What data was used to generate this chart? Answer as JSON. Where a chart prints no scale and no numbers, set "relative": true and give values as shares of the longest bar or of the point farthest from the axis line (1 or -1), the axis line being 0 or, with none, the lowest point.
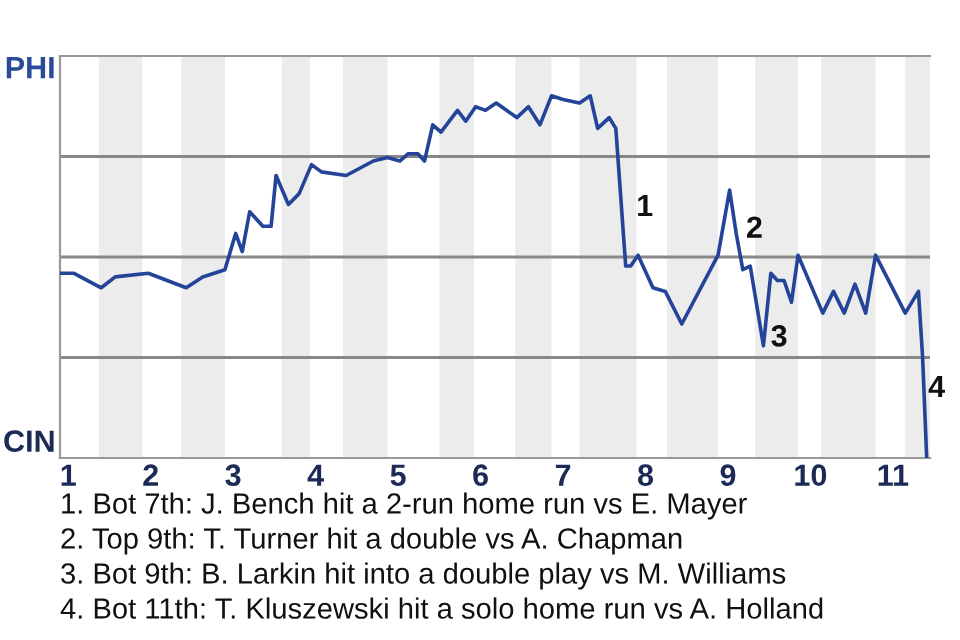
{
  "chart_data": {
    "type": "line",
    "relative": true,
    "x": [
      0.9,
      1.07,
      1.4,
      1.57,
      1.97,
      2.43,
      2.63,
      2.9,
      3.03,
      3.11,
      3.2,
      3.36,
      3.46,
      3.52,
      3.67,
      3.8,
      3.95,
      4.07,
      4.37,
      4.7,
      4.87,
      5.02,
      5.12,
      5.24,
      5.32,
      5.42,
      5.52,
      5.72,
      5.82,
      5.94,
      6.06,
      6.19,
      6.44,
      6.58,
      6.72,
      6.86,
      7.0,
      7.2,
      7.33,
      7.42,
      7.56,
      7.64,
      7.76,
      7.82,
      7.91,
      8.09,
      8.24,
      8.44,
      8.88,
      9.02,
      9.1,
      9.18,
      9.27,
      9.43,
      9.52,
      9.6,
      9.68,
      9.77,
      9.85,
      10.15,
      10.28,
      10.41,
      10.54,
      10.67,
      10.79,
      11.15,
      11.31,
      11.36,
      11.41
    ],
    "series": [
      {
        "color": "#24449a",
        "values": [
          0.51,
          0.51,
          0.47,
          0.5,
          0.51,
          0.47,
          0.5,
          0.52,
          0.62,
          0.57,
          0.68,
          0.64,
          0.64,
          0.78,
          0.7,
          0.73,
          0.81,
          0.79,
          0.78,
          0.82,
          0.83,
          0.82,
          0.84,
          0.84,
          0.82,
          0.92,
          0.9,
          0.96,
          0.93,
          0.97,
          0.96,
          0.98,
          0.94,
          0.97,
          0.92,
          1,
          0.99,
          0.98,
          1,
          0.91,
          0.94,
          0.91,
          0.53,
          0.53,
          0.56,
          0.47,
          0.46,
          0.37,
          0.56,
          0.74,
          0.62,
          0.52,
          0.53,
          0.31,
          0.51,
          0.49,
          0.49,
          0.43,
          0.56,
          0.4,
          0.46,
          0.4,
          0.48,
          0.4,
          0.56,
          0.4,
          0.46,
          0.28,
          0
        ]
      }
    ],
    "xlim": [
      0.9,
      11.45
    ],
    "xticks": [
      1,
      2,
      3,
      4,
      5,
      6,
      7,
      8,
      9,
      10,
      11
    ],
    "grid": "y",
    "marker": "none",
    "line_style": "solid",
    "bands": [
      {
        "axis": "x",
        "from": 1.37,
        "to": 1.9,
        "color": "#ececec"
      },
      {
        "axis": "x",
        "from": 2.37,
        "to": 2.9,
        "color": "#ececec"
      },
      {
        "axis": "x",
        "from": 3.59,
        "to": 3.93,
        "color": "#ececec"
      },
      {
        "axis": "x",
        "from": 4.33,
        "to": 4.87,
        "color": "#ececec"
      },
      {
        "axis": "x",
        "from": 5.5,
        "to": 5.92,
        "color": "#ececec"
      },
      {
        "axis": "x",
        "from": 6.42,
        "to": 6.86,
        "color": "#ececec"
      },
      {
        "axis": "x",
        "from": 7.2,
        "to": 7.89,
        "color": "#ececec"
      },
      {
        "axis": "x",
        "from": 8.26,
        "to": 8.88,
        "color": "#ececec"
      },
      {
        "axis": "x",
        "from": 9.33,
        "to": 9.85,
        "color": "#ececec"
      },
      {
        "axis": "x",
        "from": 10.13,
        "to": 10.79,
        "color": "#ececec"
      },
      {
        "axis": "x",
        "from": 11.15,
        "to": 11.45,
        "color": "#ececec"
      }
    ],
    "annotations": [
      "PHI",
      "CIN",
      {
        "text": "1",
        "x": 7.82,
        "y": 0.69
      },
      {
        "text": "2",
        "x": 9.15,
        "y": 0.63
      },
      {
        "text": "3",
        "x": 9.45,
        "y": 0.33
      },
      {
        "text": "4",
        "x": 11.36,
        "y": 0.19
      },
      "1. Bot 7th: J. Bench hit a 2-run home run vs E. Mayer",
      "2. Top 9th: T. Turner hit a double vs A. Chapman",
      "3. Bot 9th: B. Larkin hit into a double play vs M. Williams",
      "4. Bot 11th: T. Kluszewski hit a solo home run vs A. Holland"
    ]
  }
}
